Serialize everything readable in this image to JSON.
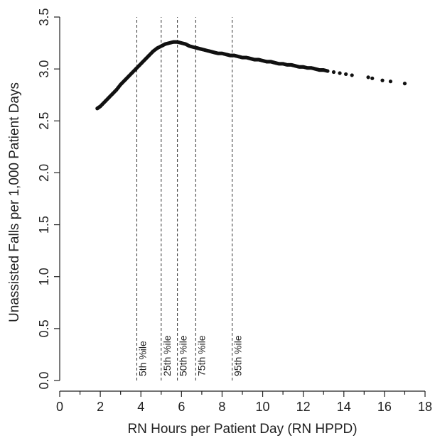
{
  "chart_data": {
    "type": "scatter",
    "title": "",
    "xlabel": "RN Hours per Patient Day (RN HPPD)",
    "ylabel": "Unassisted Falls per 1,000 Patient Days",
    "xlim": [
      0,
      18
    ],
    "ylim": [
      0,
      3.5
    ],
    "x_ticks": [
      0,
      2,
      4,
      6,
      8,
      10,
      12,
      14,
      16,
      18
    ],
    "y_ticks": [
      "0.0",
      "0.5",
      "1.0",
      "1.5",
      "2.0",
      "2.5",
      "3.0",
      "3.5"
    ],
    "grid": false,
    "colors": {
      "points": "#111111",
      "axes": "#222222",
      "reference_lines": "#333333"
    },
    "reference_lines": [
      {
        "x": 3.8,
        "label": "5th %ile"
      },
      {
        "x": 5.0,
        "label": "25th %ile"
      },
      {
        "x": 5.8,
        "label": "50th %ile"
      },
      {
        "x": 6.7,
        "label": "75th %ile"
      },
      {
        "x": 8.5,
        "label": "95th %ile"
      }
    ],
    "series": [
      {
        "points": [
          [
            1.85,
            2.62
          ],
          [
            2.0,
            2.64
          ],
          [
            2.2,
            2.68
          ],
          [
            2.4,
            2.72
          ],
          [
            2.6,
            2.76
          ],
          [
            2.8,
            2.8
          ],
          [
            3.0,
            2.85
          ],
          [
            3.2,
            2.89
          ],
          [
            3.4,
            2.93
          ],
          [
            3.6,
            2.97
          ],
          [
            3.8,
            3.01
          ],
          [
            4.0,
            3.05
          ],
          [
            4.2,
            3.09
          ],
          [
            4.4,
            3.13
          ],
          [
            4.6,
            3.17
          ],
          [
            4.8,
            3.2
          ],
          [
            5.0,
            3.22
          ],
          [
            5.2,
            3.24
          ],
          [
            5.4,
            3.25
          ],
          [
            5.6,
            3.26
          ],
          [
            5.8,
            3.26
          ],
          [
            6.0,
            3.25
          ],
          [
            6.2,
            3.24
          ],
          [
            6.4,
            3.22
          ],
          [
            6.6,
            3.21
          ],
          [
            6.8,
            3.2
          ],
          [
            7.0,
            3.19
          ],
          [
            7.2,
            3.18
          ],
          [
            7.4,
            3.17
          ],
          [
            7.6,
            3.16
          ],
          [
            7.8,
            3.15
          ],
          [
            8.0,
            3.15
          ],
          [
            8.2,
            3.14
          ],
          [
            8.4,
            3.13
          ],
          [
            8.6,
            3.13
          ],
          [
            8.8,
            3.12
          ],
          [
            9.0,
            3.11
          ],
          [
            9.2,
            3.11
          ],
          [
            9.4,
            3.1
          ],
          [
            9.6,
            3.09
          ],
          [
            9.8,
            3.09
          ],
          [
            10.0,
            3.08
          ],
          [
            10.2,
            3.07
          ],
          [
            10.4,
            3.07
          ],
          [
            10.6,
            3.06
          ],
          [
            10.8,
            3.05
          ],
          [
            11.0,
            3.05
          ],
          [
            11.2,
            3.04
          ],
          [
            11.4,
            3.04
          ],
          [
            11.6,
            3.03
          ],
          [
            11.8,
            3.02
          ],
          [
            12.0,
            3.02
          ],
          [
            12.2,
            3.01
          ],
          [
            12.4,
            3.01
          ],
          [
            12.6,
            3.0
          ],
          [
            12.8,
            2.99
          ],
          [
            13.0,
            2.99
          ],
          [
            13.2,
            2.98
          ],
          [
            13.5,
            2.97
          ],
          [
            13.8,
            2.96
          ],
          [
            14.1,
            2.95
          ],
          [
            14.4,
            2.94
          ],
          [
            15.2,
            2.92
          ],
          [
            15.4,
            2.91
          ],
          [
            15.9,
            2.89
          ],
          [
            16.3,
            2.88
          ],
          [
            17.0,
            2.86
          ]
        ]
      }
    ]
  }
}
